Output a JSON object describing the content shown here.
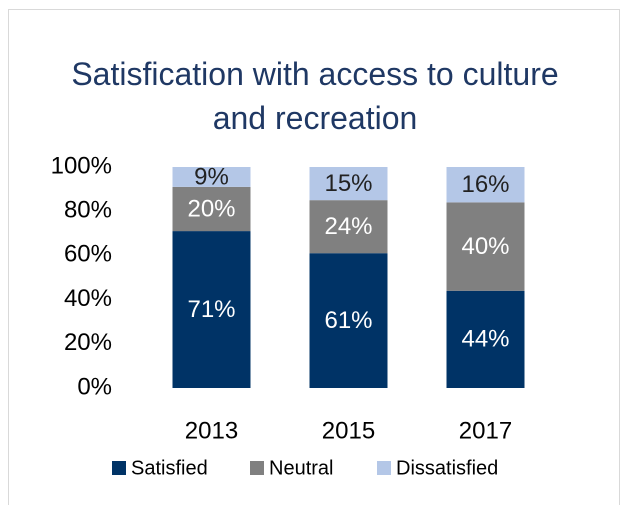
{
  "chart_data": {
    "type": "stacked_bar",
    "title": "Satisfication with access to culture and recreation",
    "categories": [
      "2013",
      "2015",
      "2017"
    ],
    "series": [
      {
        "name": "Satisfied",
        "color": "#003366",
        "values": [
          71,
          61,
          44
        ],
        "value_labels": [
          "71%",
          "61%",
          "44%"
        ]
      },
      {
        "name": "Neutral",
        "color": "#808080",
        "values": [
          20,
          24,
          40
        ],
        "value_labels": [
          "20%",
          "24%",
          "40%"
        ]
      },
      {
        "name": "Dissatisfied",
        "color": "#b4c7e7",
        "values": [
          9,
          15,
          16
        ],
        "value_labels": [
          "9%",
          "15%",
          "16%"
        ]
      }
    ],
    "ylim": [
      0,
      100
    ],
    "yticks": [
      {
        "value": 0,
        "label": "0%"
      },
      {
        "value": 20,
        "label": "20%"
      },
      {
        "value": 40,
        "label": "40%"
      },
      {
        "value": 60,
        "label": "60%"
      },
      {
        "value": 80,
        "label": "80%"
      },
      {
        "value": 100,
        "label": "100%"
      }
    ],
    "grid": false,
    "legend": "bottom"
  }
}
